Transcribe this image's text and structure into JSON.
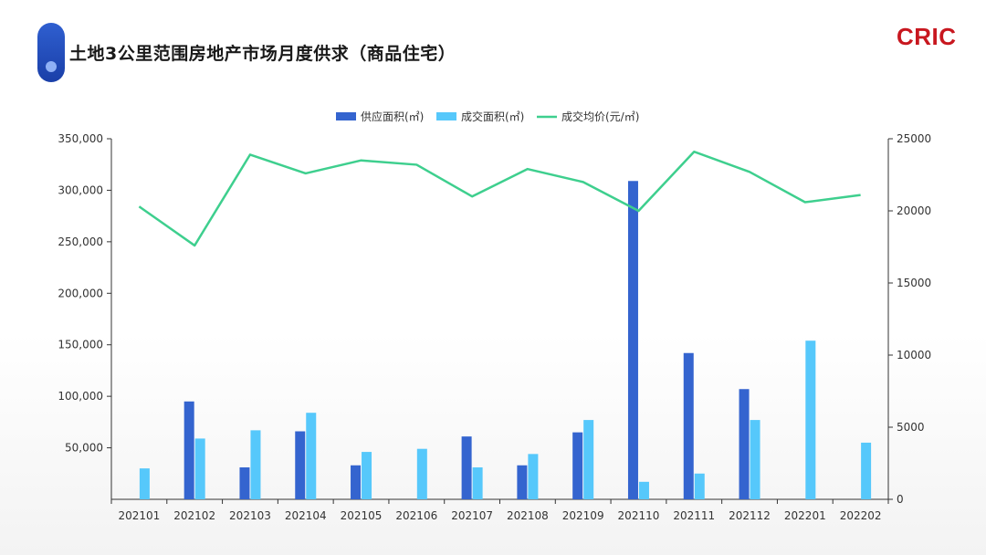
{
  "header": {
    "title": "土地3公里范围房地产市场月度供求（商品住宅）",
    "logo": "CRIC"
  },
  "colors": {
    "accent": "#2a56c6",
    "supply": "#3464cf",
    "deal": "#56c8fb",
    "price": "#3ecf8e",
    "logo": "#c8171f"
  },
  "chart_data": {
    "type": "bar",
    "categories": [
      "202101",
      "202102",
      "202103",
      "202104",
      "202105",
      "202106",
      "202107",
      "202108",
      "202109",
      "202110",
      "202111",
      "202112",
      "202201",
      "202202"
    ],
    "series": [
      {
        "name": "供应面积(㎡)",
        "type": "bar",
        "axis": "left",
        "values": [
          0,
          95000,
          31000,
          66000,
          33000,
          0,
          61000,
          33000,
          65000,
          309000,
          142000,
          107000,
          0,
          0
        ]
      },
      {
        "name": "成交面积(㎡)",
        "type": "bar",
        "axis": "left",
        "values": [
          30000,
          59000,
          67000,
          84000,
          46000,
          49000,
          31000,
          44000,
          77000,
          17000,
          25000,
          77000,
          154000,
          55000
        ]
      },
      {
        "name": "成交均价(元/㎡)",
        "type": "line",
        "axis": "right",
        "values": [
          20300,
          17600,
          23900,
          22600,
          23500,
          23200,
          21000,
          22900,
          22000,
          20000,
          24100,
          22700,
          20600,
          21100
        ]
      }
    ],
    "left_axis": {
      "min": 0,
      "max": 350000,
      "ticks": [
        "50,000",
        "100,000",
        "150,000",
        "200,000",
        "250,000",
        "300,000",
        "350,000"
      ],
      "tick_values": [
        50000,
        100000,
        150000,
        200000,
        250000,
        300000,
        350000
      ]
    },
    "right_axis": {
      "min": 0,
      "max": 25000,
      "ticks": [
        "0",
        "5000",
        "10000",
        "15000",
        "20000",
        "25000"
      ],
      "tick_values": [
        0,
        5000,
        10000,
        15000,
        20000,
        25000
      ]
    },
    "legend_position": "top-center",
    "grid": false
  }
}
